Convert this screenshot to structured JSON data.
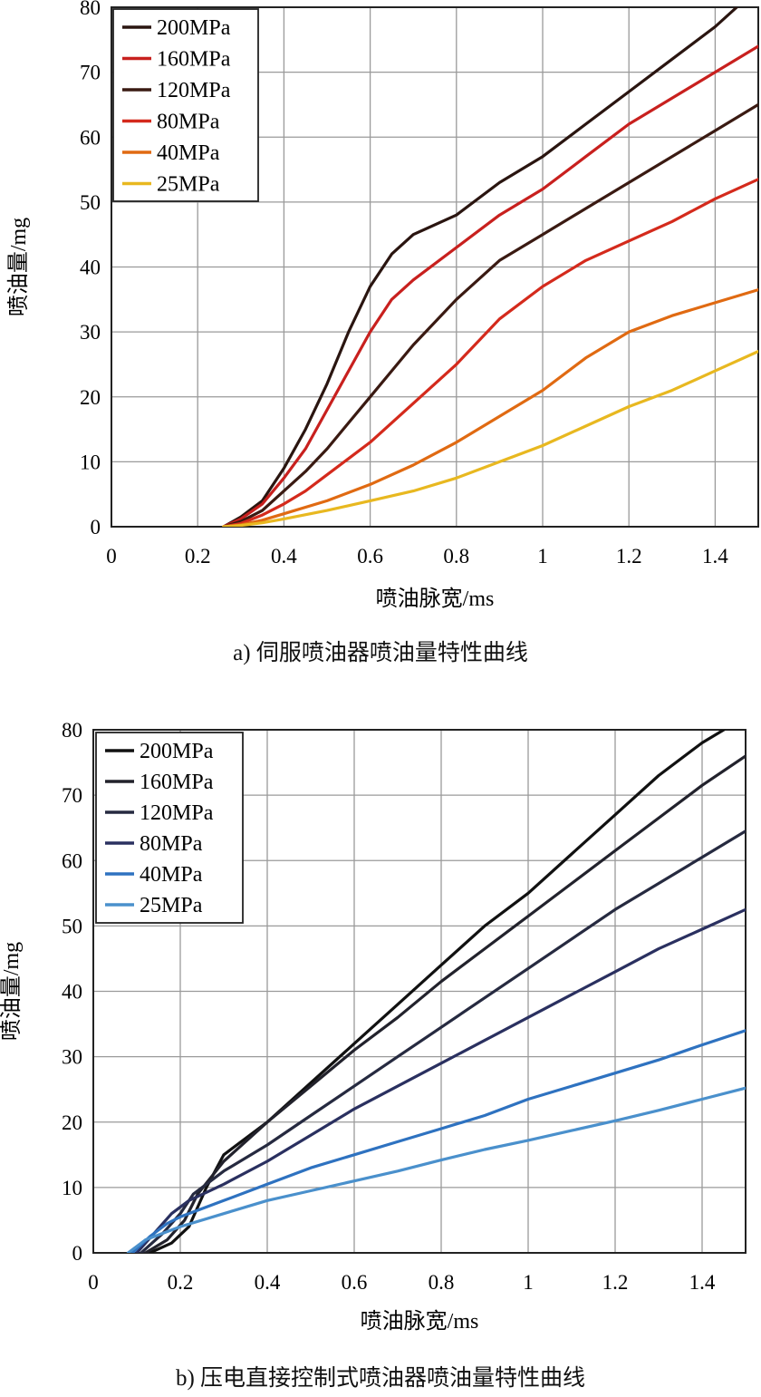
{
  "chart_data": [
    {
      "type": "line",
      "caption": "a) 伺服喷油器喷油量特性曲线",
      "xlabel": "喷油脉宽/ms",
      "ylabel": "喷油量/mg",
      "xlim": [
        0,
        1.5
      ],
      "ylim": [
        0,
        80
      ],
      "xticks": [
        0,
        0.2,
        0.4,
        0.6,
        0.8,
        1,
        1.2,
        1.4
      ],
      "xtick_labels": [
        "0",
        "0.2",
        "0.4",
        "0.6",
        "0.8",
        "1",
        "1.2",
        "1.4"
      ],
      "yticks": [
        0,
        10,
        20,
        30,
        40,
        50,
        60,
        70,
        80
      ],
      "ytick_labels": [
        "0",
        "10",
        "20",
        "30",
        "40",
        "50",
        "60",
        "70",
        "80"
      ],
      "grid": true,
      "legend_position": "top-left",
      "series": [
        {
          "name": "200MPa",
          "color": "#2a1510",
          "x": [
            0.26,
            0.3,
            0.35,
            0.4,
            0.45,
            0.5,
            0.55,
            0.6,
            0.65,
            0.7,
            0.8,
            0.9,
            1.0,
            1.1,
            1.2,
            1.3,
            1.4,
            1.45
          ],
          "y": [
            0,
            1.5,
            4,
            9,
            15,
            22,
            30,
            37,
            42,
            45,
            48,
            53,
            57,
            62,
            67,
            72,
            77,
            80
          ]
        },
        {
          "name": "160MPa",
          "color": "#c8201e",
          "x": [
            0.26,
            0.3,
            0.35,
            0.4,
            0.45,
            0.5,
            0.55,
            0.6,
            0.65,
            0.7,
            0.8,
            0.9,
            1.0,
            1.1,
            1.2,
            1.3,
            1.4,
            1.5
          ],
          "y": [
            0,
            1.2,
            3.5,
            7.5,
            12,
            18,
            24,
            30,
            35,
            38,
            43,
            48,
            52,
            57,
            62,
            66,
            70,
            74
          ]
        },
        {
          "name": "120MPa",
          "color": "#3a1a12",
          "x": [
            0.26,
            0.3,
            0.35,
            0.4,
            0.45,
            0.5,
            0.55,
            0.6,
            0.65,
            0.7,
            0.8,
            0.9,
            1.0,
            1.1,
            1.2,
            1.3,
            1.4,
            1.5
          ],
          "y": [
            0,
            0.8,
            2.5,
            5.5,
            8.5,
            12,
            16,
            20,
            24,
            28,
            35,
            41,
            45,
            49,
            53,
            57,
            61,
            65
          ]
        },
        {
          "name": "80MPa",
          "color": "#d42a1c",
          "x": [
            0.26,
            0.3,
            0.35,
            0.4,
            0.45,
            0.5,
            0.55,
            0.6,
            0.65,
            0.7,
            0.8,
            0.9,
            1.0,
            1.1,
            1.2,
            1.3,
            1.4,
            1.5
          ],
          "y": [
            0,
            0.5,
            1.8,
            3.5,
            5.5,
            8,
            10.5,
            13,
            16,
            19,
            25,
            32,
            37,
            41,
            44,
            47,
            50.5,
            53.5
          ]
        },
        {
          "name": "40MPa",
          "color": "#e06a12",
          "x": [
            0.26,
            0.3,
            0.35,
            0.4,
            0.5,
            0.6,
            0.7,
            0.8,
            0.9,
            1.0,
            1.1,
            1.2,
            1.3,
            1.4,
            1.5
          ],
          "y": [
            0,
            0.3,
            1,
            2,
            4,
            6.5,
            9.5,
            13,
            17,
            21,
            26,
            30,
            32.5,
            34.5,
            36.5
          ]
        },
        {
          "name": "25MPa",
          "color": "#e8b820",
          "x": [
            0.26,
            0.3,
            0.35,
            0.4,
            0.5,
            0.6,
            0.7,
            0.8,
            0.9,
            1.0,
            1.1,
            1.2,
            1.3,
            1.4,
            1.5
          ],
          "y": [
            0,
            0.2,
            0.6,
            1.2,
            2.5,
            4,
            5.5,
            7.5,
            10,
            12.5,
            15.5,
            18.5,
            21,
            24,
            27
          ]
        }
      ]
    },
    {
      "type": "line",
      "caption": "b) 压电直接控制式喷油器喷油量特性曲线",
      "xlabel": "喷油脉宽/ms",
      "ylabel": "喷油量/mg",
      "xlim": [
        0,
        1.5
      ],
      "ylim": [
        0,
        80
      ],
      "xticks": [
        0,
        0.2,
        0.4,
        0.6,
        0.8,
        1,
        1.2,
        1.4
      ],
      "xtick_labels": [
        "0",
        "0.2",
        "0.4",
        "0.6",
        "0.8",
        "1",
        "1.2",
        "1.4"
      ],
      "yticks": [
        0,
        10,
        20,
        30,
        40,
        50,
        60,
        70,
        80
      ],
      "ytick_labels": [
        "0",
        "10",
        "20",
        "30",
        "40",
        "50",
        "60",
        "70",
        "80"
      ],
      "grid": true,
      "legend_position": "top-left",
      "series": [
        {
          "name": "200MPa",
          "color": "#111111",
          "x": [
            0.13,
            0.18,
            0.22,
            0.26,
            0.3,
            0.4,
            0.5,
            0.6,
            0.7,
            0.8,
            0.9,
            1.0,
            1.1,
            1.2,
            1.3,
            1.4,
            1.45
          ],
          "y": [
            0,
            1.5,
            4,
            10,
            15,
            20,
            26,
            32,
            38,
            44,
            50,
            55,
            61,
            67,
            73,
            78,
            80
          ]
        },
        {
          "name": "160MPa",
          "color": "#22222c",
          "x": [
            0.12,
            0.17,
            0.21,
            0.24,
            0.3,
            0.4,
            0.5,
            0.6,
            0.7,
            0.8,
            0.9,
            1.0,
            1.1,
            1.2,
            1.3,
            1.4,
            1.5
          ],
          "y": [
            0,
            2,
            5,
            9,
            14,
            20,
            25.5,
            31,
            36,
            41.5,
            46.5,
            51.5,
            56.5,
            61.5,
            66.5,
            71.5,
            76
          ]
        },
        {
          "name": "120MPa",
          "color": "#262a40",
          "x": [
            0.11,
            0.16,
            0.2,
            0.23,
            0.3,
            0.4,
            0.5,
            0.6,
            0.7,
            0.8,
            0.9,
            1.0,
            1.1,
            1.2,
            1.3,
            1.4,
            1.5
          ],
          "y": [
            0,
            3,
            6,
            9,
            12.5,
            16.5,
            21,
            25.5,
            30,
            34.5,
            39,
            43.5,
            48,
            52.5,
            56.5,
            60.5,
            64.5
          ]
        },
        {
          "name": "80MPa",
          "color": "#2a3060",
          "x": [
            0.1,
            0.14,
            0.18,
            0.22,
            0.3,
            0.4,
            0.5,
            0.6,
            0.7,
            0.8,
            0.9,
            1.0,
            1.1,
            1.2,
            1.3,
            1.4,
            1.5
          ],
          "y": [
            0,
            3,
            6,
            8,
            10.5,
            14,
            18,
            22,
            25.5,
            29,
            32.5,
            36,
            39.5,
            43,
            46.5,
            49.5,
            52.5
          ]
        },
        {
          "name": "40MPa",
          "color": "#2e72c0",
          "x": [
            0.09,
            0.13,
            0.17,
            0.2,
            0.3,
            0.4,
            0.5,
            0.6,
            0.7,
            0.8,
            0.9,
            1.0,
            1.1,
            1.2,
            1.3,
            1.4,
            1.5
          ],
          "y": [
            0,
            2.5,
            4.5,
            5.5,
            8,
            10.5,
            13,
            15,
            17,
            19,
            21,
            23.5,
            25.5,
            27.5,
            29.5,
            31.8,
            34
          ]
        },
        {
          "name": "25MPa",
          "color": "#4a90cc",
          "x": [
            0.08,
            0.12,
            0.16,
            0.2,
            0.3,
            0.4,
            0.5,
            0.6,
            0.7,
            0.8,
            0.9,
            1.0,
            1.1,
            1.2,
            1.3,
            1.4,
            1.5
          ],
          "y": [
            0,
            2,
            3,
            4,
            6,
            8,
            9.5,
            11,
            12.5,
            14.2,
            15.8,
            17.2,
            18.7,
            20.2,
            21.8,
            23.5,
            25.2
          ]
        }
      ]
    }
  ]
}
